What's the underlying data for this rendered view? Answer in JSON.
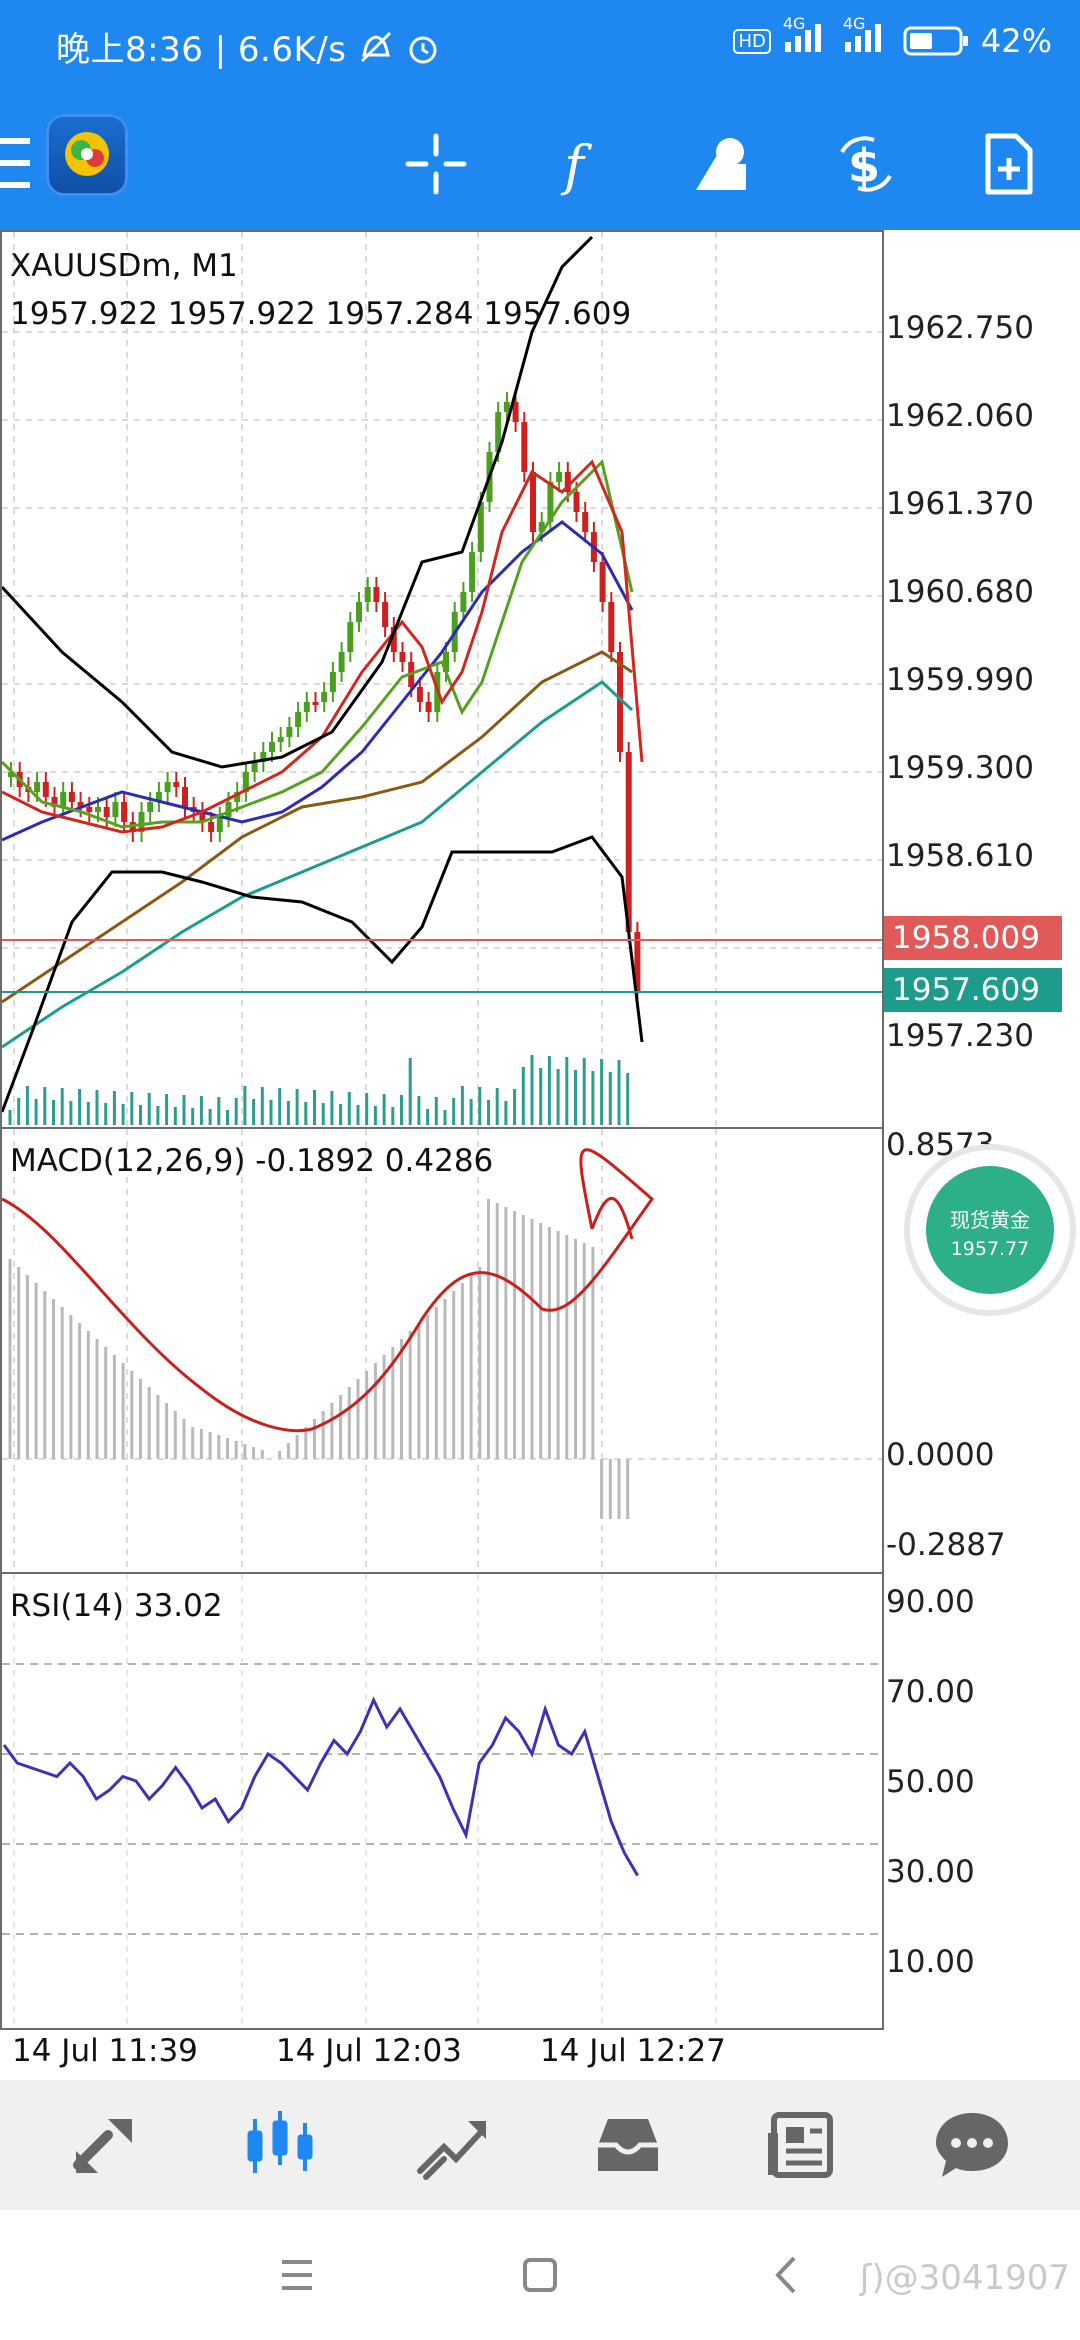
{
  "status_bar": {
    "time_speed": "晚上8:36 | 6.6K/s",
    "network_hd": "HD",
    "network_4g_1": "4G",
    "network_4g_2": "4G",
    "battery": "42%"
  },
  "toolbar": {
    "icons": [
      "menu-icon",
      "app-logo",
      "crosshair-icon",
      "indicator-f-icon",
      "objects-icon",
      "symbol-dollar-icon",
      "new-order-icon"
    ]
  },
  "chart": {
    "symbol_timeframe": "XAUUSDm, M1",
    "ohlc": "1957.922 1957.922 1957.284 1957.609",
    "price_axis": [
      "1962.750",
      "1962.060",
      "1961.370",
      "1960.680",
      "1959.990",
      "1959.300",
      "1958.610",
      "1957.230"
    ],
    "bid_price": "1958.009",
    "ask_price": "1957.609",
    "bid_color": "#e05a5a",
    "ask_color": "#1d9c8c",
    "macd_title": "MACD(12,26,9) -0.1892 0.4286",
    "macd_axis": [
      "0.8573",
      "0.0000",
      "-0.2887"
    ],
    "rsi_title": "RSI(14) 33.02",
    "rsi_axis": [
      "90.00",
      "70.00",
      "50.00",
      "30.00",
      "10.00"
    ],
    "time_axis": [
      "14 Jul 11:39",
      "14 Jul 12:03",
      "14 Jul 12:27"
    ]
  },
  "badge": {
    "title": "现货黄金",
    "price": "1957.77"
  },
  "bottom_nav": {
    "items": [
      "quotes-icon",
      "chart-icon",
      "trade-icon",
      "history-icon",
      "news-icon",
      "messages-icon"
    ],
    "active": "chart-icon"
  },
  "watermark": "ʃ)@3041907"
}
